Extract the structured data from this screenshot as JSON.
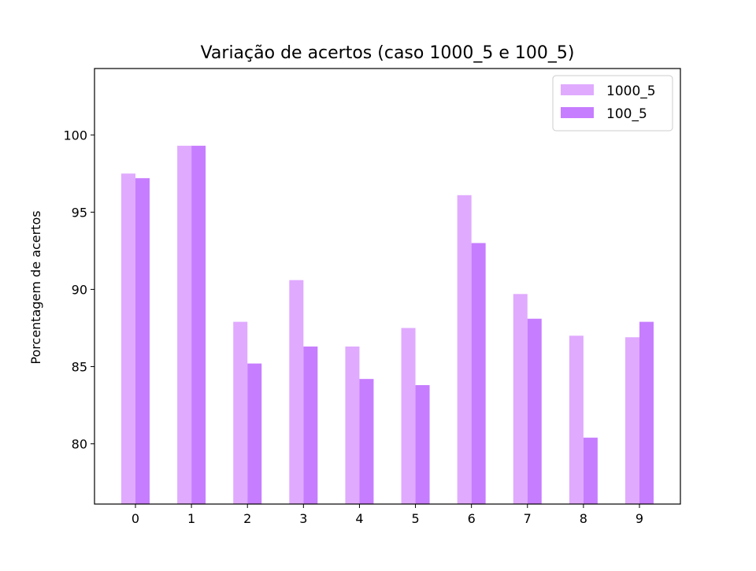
{
  "chart_data": {
    "type": "bar",
    "title": "Variação de acertos (caso 1000_5 e 100_5)",
    "xlabel": "",
    "ylabel": "Porcentagem de acertos",
    "categories": [
      "0",
      "1",
      "2",
      "3",
      "4",
      "5",
      "6",
      "7",
      "8",
      "9"
    ],
    "series": [
      {
        "name": "1000_5",
        "color": "#e0aaff",
        "values": [
          97.5,
          99.3,
          87.9,
          90.6,
          86.3,
          87.5,
          96.1,
          89.7,
          87.0,
          86.9
        ]
      },
      {
        "name": "100_5",
        "color": "#c77dff",
        "values": [
          97.2,
          99.3,
          85.2,
          86.3,
          84.2,
          83.8,
          93.0,
          88.1,
          80.4,
          87.9
        ]
      }
    ],
    "ylim": [
      76.1,
      104.3
    ],
    "yticks": [
      80,
      85,
      90,
      95,
      100
    ],
    "grid": false,
    "legend_position": "top-right"
  }
}
